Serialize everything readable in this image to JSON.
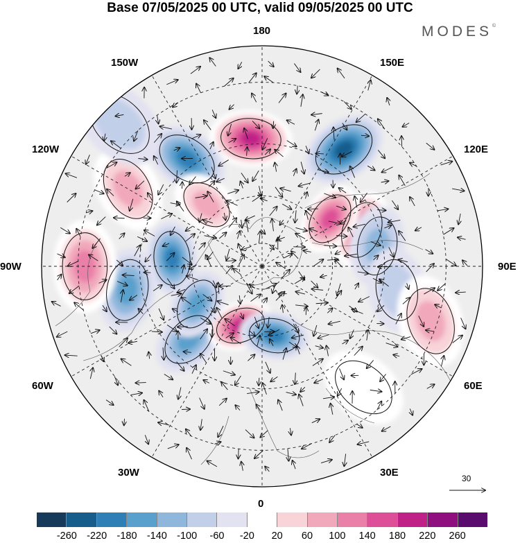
{
  "title": "Base 07/05/2025 00 UTC, valid 09/05/2025 00 UTC",
  "brand": "MODES",
  "brand_mark": "©",
  "longitude_labels": {
    "top": "180",
    "bottom": "0",
    "left": "90W",
    "right": "90E",
    "upper_left_1": "150W",
    "upper_left_2": "120W",
    "upper_right_1": "150E",
    "upper_right_2": "120E",
    "lower_left_1": "60W",
    "lower_left_2": "30W",
    "lower_right_1": "60E",
    "lower_right_2": "30E"
  },
  "reference_vector": {
    "label": "30",
    "icon": "arrow-right-icon"
  },
  "colorbar": {
    "colors": [
      "#173a5a",
      "#175d8c",
      "#2d7fb6",
      "#5aa0cc",
      "#8fb7dc",
      "#c2cfe9",
      "#e2e2f1",
      "#ffffff",
      "#f8d3d8",
      "#f1a8bb",
      "#ea7fa8",
      "#dd4f97",
      "#bf2187",
      "#8f0f7e",
      "#5a0c6e"
    ],
    "tick_labels": [
      "-260",
      "-220",
      "-180",
      "-140",
      "-100",
      "-60",
      "-20",
      "20",
      "60",
      "100",
      "140",
      "180",
      "220",
      "260"
    ]
  },
  "map": {
    "projection": "north-polar-stereographic",
    "background_color": "#eeeeee",
    "anomalies": [
      {
        "lon": 145,
        "lat": 33,
        "value": -230
      },
      {
        "lon": 185,
        "lat": 38,
        "value": 240
      },
      {
        "lon": 215,
        "lat": 37,
        "value": -190
      },
      {
        "lon": 222,
        "lat": 55,
        "value": 130
      },
      {
        "lon": 240,
        "lat": 29,
        "value": 110
      },
      {
        "lon": 265,
        "lat": 52,
        "value": -190
      },
      {
        "lon": 280,
        "lat": 35,
        "value": -170
      },
      {
        "lon": 270,
        "lat": 22,
        "value": 150
      },
      {
        "lon": 315,
        "lat": 47,
        "value": -170
      },
      {
        "lon": 340,
        "lat": 63,
        "value": 230
      },
      {
        "lon": 10,
        "lat": 60,
        "value": -200
      },
      {
        "lon": 300,
        "lat": 58,
        "value": -170
      },
      {
        "lon": 110,
        "lat": 46,
        "value": 180
      },
      {
        "lon": 125,
        "lat": 55,
        "value": 200
      },
      {
        "lon": 100,
        "lat": 42,
        "value": -130
      },
      {
        "lon": 80,
        "lat": 35,
        "value": -60
      },
      {
        "lon": 72,
        "lat": 22,
        "value": 110
      },
      {
        "lon": 40,
        "lat": 28,
        "value": 40
      },
      {
        "lon": 225,
        "lat": 15,
        "value": -80
      }
    ]
  }
}
